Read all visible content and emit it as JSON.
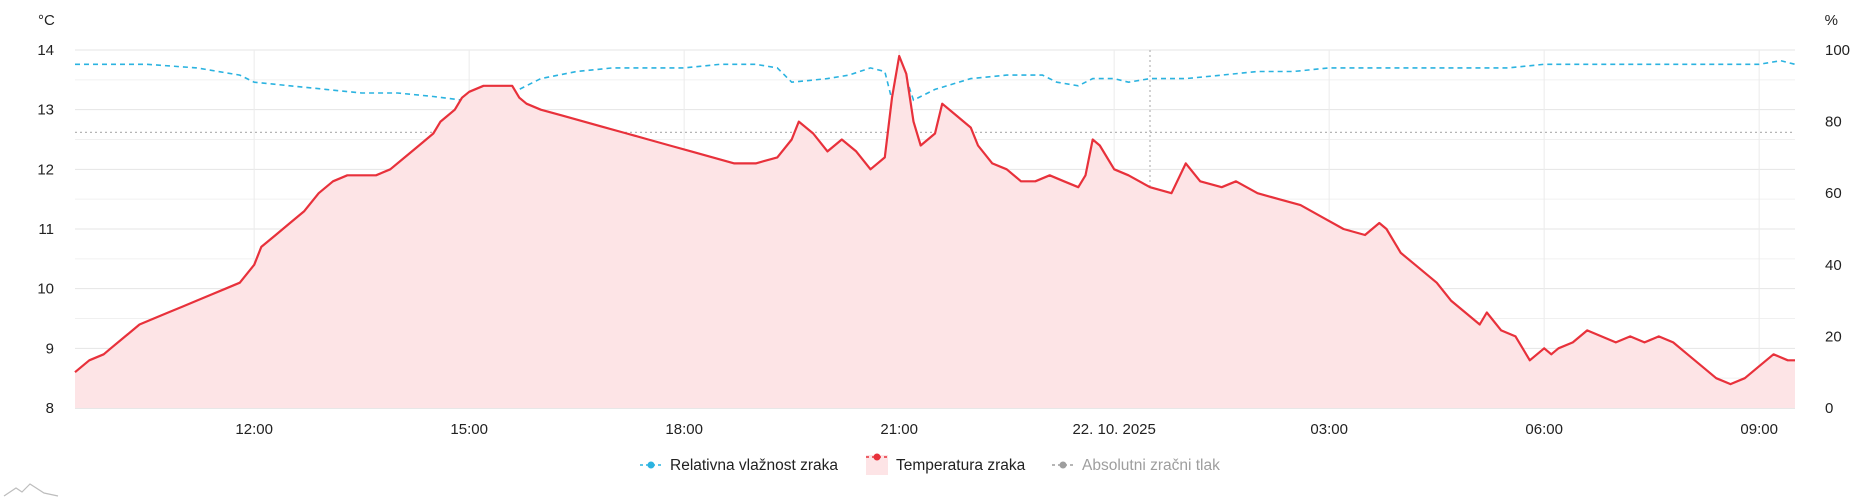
{
  "chart_data": {
    "type": "line",
    "y_left": {
      "unit": "°C",
      "min": 8,
      "max": 14,
      "ticks": [
        "8",
        "9",
        "10",
        "11",
        "12",
        "13",
        "14"
      ]
    },
    "y_right": {
      "unit": "%",
      "min": 0,
      "max": 100,
      "ticks": [
        "0",
        "20",
        "40",
        "60",
        "80",
        "100"
      ]
    },
    "x": {
      "start_hour": 9.5,
      "end_hour": 33.5,
      "ticks": [
        {
          "hour": 12,
          "label": "12:00"
        },
        {
          "hour": 15,
          "label": "15:00"
        },
        {
          "hour": 18,
          "label": "18:00"
        },
        {
          "hour": 21,
          "label": "21:00"
        },
        {
          "hour": 24,
          "label": "22. 10. 2025"
        },
        {
          "hour": 27,
          "label": "03:00"
        },
        {
          "hour": 30,
          "label": "06:00"
        },
        {
          "hour": 33,
          "label": "09:00"
        }
      ]
    },
    "grid": true,
    "legend_position": "bottom",
    "series": [
      {
        "name": "Relativna vlažnost zraka",
        "axis": "right",
        "style": "dashed",
        "color": "#2bb3e0",
        "points": [
          [
            9.5,
            96
          ],
          [
            10.5,
            96
          ],
          [
            11.2,
            95
          ],
          [
            11.8,
            93
          ],
          [
            12,
            91
          ],
          [
            12.5,
            90
          ],
          [
            13,
            89
          ],
          [
            13.5,
            88
          ],
          [
            14,
            88
          ],
          [
            14.5,
            87
          ],
          [
            14.9,
            86
          ],
          [
            15.5,
            87
          ],
          [
            16,
            92
          ],
          [
            16.5,
            94
          ],
          [
            17,
            95
          ],
          [
            17.5,
            95
          ],
          [
            18,
            95
          ],
          [
            18.5,
            96
          ],
          [
            19,
            96
          ],
          [
            19.3,
            95
          ],
          [
            19.5,
            91
          ],
          [
            20,
            92
          ],
          [
            20.3,
            93
          ],
          [
            20.6,
            95
          ],
          [
            20.8,
            94
          ],
          [
            20.9,
            86
          ],
          [
            21.1,
            92
          ],
          [
            21.2,
            86
          ],
          [
            21.5,
            89
          ],
          [
            22,
            92
          ],
          [
            22.5,
            93
          ],
          [
            23,
            93
          ],
          [
            23.2,
            91
          ],
          [
            23.5,
            90
          ],
          [
            23.7,
            92
          ],
          [
            24,
            92
          ],
          [
            24.2,
            91
          ],
          [
            24.5,
            92
          ],
          [
            25,
            92
          ],
          [
            25.5,
            93
          ],
          [
            26,
            94
          ],
          [
            26.5,
            94
          ],
          [
            27,
            95
          ],
          [
            27.5,
            95
          ],
          [
            28,
            95
          ],
          [
            28.5,
            95
          ],
          [
            29,
            95
          ],
          [
            29.5,
            95
          ],
          [
            30,
            96
          ],
          [
            30.5,
            96
          ],
          [
            31,
            96
          ],
          [
            31.5,
            96
          ],
          [
            32,
            96
          ],
          [
            32.5,
            96
          ],
          [
            33,
            96
          ],
          [
            33.3,
            97
          ],
          [
            33.5,
            96
          ]
        ]
      },
      {
        "name": "Temperatura zraka",
        "axis": "left",
        "style": "solid-area",
        "color": "#e8313b",
        "fill": "#fde4e6",
        "points": [
          [
            9.5,
            8.6
          ],
          [
            9.6,
            8.7
          ],
          [
            9.7,
            8.8
          ],
          [
            9.9,
            8.9
          ],
          [
            10,
            9
          ],
          [
            10.2,
            9.2
          ],
          [
            10.4,
            9.4
          ],
          [
            10.6,
            9.5
          ],
          [
            10.8,
            9.6
          ],
          [
            11,
            9.7
          ],
          [
            11.2,
            9.8
          ],
          [
            11.4,
            9.9
          ],
          [
            11.6,
            10
          ],
          [
            11.8,
            10.1
          ],
          [
            12,
            10.4
          ],
          [
            12.1,
            10.7
          ],
          [
            12.3,
            10.9
          ],
          [
            12.5,
            11.1
          ],
          [
            12.7,
            11.3
          ],
          [
            12.9,
            11.6
          ],
          [
            13.1,
            11.8
          ],
          [
            13.3,
            11.9
          ],
          [
            13.5,
            11.9
          ],
          [
            13.7,
            11.9
          ],
          [
            13.9,
            12
          ],
          [
            14.1,
            12.2
          ],
          [
            14.3,
            12.4
          ],
          [
            14.5,
            12.6
          ],
          [
            14.6,
            12.8
          ],
          [
            14.7,
            12.9
          ],
          [
            14.8,
            13
          ],
          [
            14.9,
            13.2
          ],
          [
            15,
            13.3
          ],
          [
            15.2,
            13.4
          ],
          [
            15.4,
            13.4
          ],
          [
            15.6,
            13.4
          ],
          [
            15.7,
            13.2
          ],
          [
            15.8,
            13.1
          ],
          [
            16,
            13
          ],
          [
            16.3,
            12.9
          ],
          [
            16.6,
            12.8
          ],
          [
            16.9,
            12.7
          ],
          [
            17.2,
            12.6
          ],
          [
            17.5,
            12.5
          ],
          [
            17.8,
            12.4
          ],
          [
            18.1,
            12.3
          ],
          [
            18.4,
            12.2
          ],
          [
            18.7,
            12.1
          ],
          [
            19,
            12.1
          ],
          [
            19.3,
            12.2
          ],
          [
            19.5,
            12.5
          ],
          [
            19.6,
            12.8
          ],
          [
            19.8,
            12.6
          ],
          [
            20,
            12.3
          ],
          [
            20.2,
            12.5
          ],
          [
            20.4,
            12.3
          ],
          [
            20.6,
            12
          ],
          [
            20.8,
            12.2
          ],
          [
            20.9,
            13.2
          ],
          [
            21,
            13.9
          ],
          [
            21.1,
            13.6
          ],
          [
            21.2,
            12.8
          ],
          [
            21.3,
            12.4
          ],
          [
            21.5,
            12.6
          ],
          [
            21.6,
            13.1
          ],
          [
            21.8,
            12.9
          ],
          [
            22,
            12.7
          ],
          [
            22.1,
            12.4
          ],
          [
            22.3,
            12.1
          ],
          [
            22.5,
            12
          ],
          [
            22.7,
            11.8
          ],
          [
            22.9,
            11.8
          ],
          [
            23.1,
            11.9
          ],
          [
            23.3,
            11.8
          ],
          [
            23.5,
            11.7
          ],
          [
            23.6,
            11.9
          ],
          [
            23.7,
            12.5
          ],
          [
            23.8,
            12.4
          ],
          [
            24,
            12
          ],
          [
            24.2,
            11.9
          ],
          [
            24.5,
            11.7
          ],
          [
            24.8,
            11.6
          ],
          [
            25,
            12.1
          ],
          [
            25.2,
            11.8
          ],
          [
            25.5,
            11.7
          ],
          [
            25.7,
            11.8
          ],
          [
            26,
            11.6
          ],
          [
            26.3,
            11.5
          ],
          [
            26.6,
            11.4
          ],
          [
            26.9,
            11.2
          ],
          [
            27.2,
            11
          ],
          [
            27.5,
            10.9
          ],
          [
            27.7,
            11.1
          ],
          [
            27.8,
            11
          ],
          [
            28,
            10.6
          ],
          [
            28.2,
            10.4
          ],
          [
            28.5,
            10.1
          ],
          [
            28.7,
            9.8
          ],
          [
            28.9,
            9.6
          ],
          [
            29.1,
            9.4
          ],
          [
            29.2,
            9.6
          ],
          [
            29.4,
            9.3
          ],
          [
            29.6,
            9.2
          ],
          [
            29.8,
            8.8
          ],
          [
            30,
            9
          ],
          [
            30.1,
            8.9
          ],
          [
            30.2,
            9
          ],
          [
            30.4,
            9.1
          ],
          [
            30.6,
            9.3
          ],
          [
            30.8,
            9.2
          ],
          [
            31,
            9.1
          ],
          [
            31.2,
            9.2
          ],
          [
            31.4,
            9.1
          ],
          [
            31.6,
            9.2
          ],
          [
            31.8,
            9.1
          ],
          [
            32,
            8.9
          ],
          [
            32.2,
            8.7
          ],
          [
            32.4,
            8.5
          ],
          [
            32.6,
            8.4
          ],
          [
            32.8,
            8.5
          ],
          [
            33,
            8.7
          ],
          [
            33.2,
            8.9
          ],
          [
            33.4,
            8.8
          ],
          [
            33.5,
            8.8
          ]
        ]
      },
      {
        "name": "Absolutni zračni tlak",
        "axis": "right",
        "style": "dotted",
        "color": "#999999",
        "hidden": true,
        "points": []
      }
    ],
    "reference_lines": [
      {
        "axis": "right",
        "value": 77,
        "style": "dotted",
        "color": "#b5b5b5"
      },
      {
        "axis": "x",
        "value": 24.5,
        "style": "dotted",
        "color": "#b5b5b5"
      }
    ]
  },
  "legend": [
    {
      "label": "Relativna vlažnost zraka",
      "color": "#2bb3e0",
      "text_color": "#222222",
      "marker": "dashed-dot"
    },
    {
      "label": "Temperatura zraka",
      "color": "#e8313b",
      "text_color": "#222222",
      "marker": "area-dot"
    },
    {
      "label": "Absolutni zračni tlak",
      "color": "#9e9e9e",
      "text_color": "#9e9e9e",
      "marker": "dashed-dot"
    }
  ],
  "icons": {
    "corner": "mountain-icon"
  }
}
